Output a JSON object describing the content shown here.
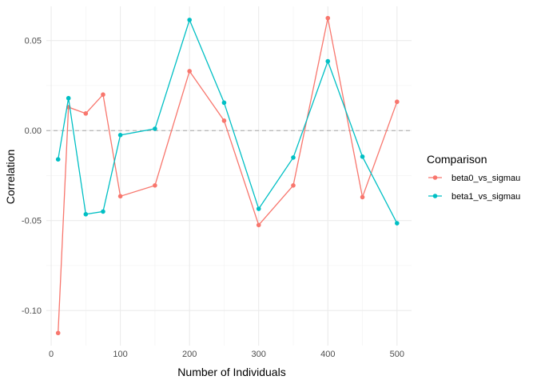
{
  "chart_data": {
    "type": "line",
    "title": "",
    "xlabel": "Number of Individuals",
    "ylabel": "Correlation",
    "xlim": [
      -7,
      521
    ],
    "ylim": [
      -0.1195,
      0.069
    ],
    "xticks": [
      0,
      100,
      200,
      300,
      400,
      500
    ],
    "xtick_labels": [
      "0",
      "100",
      "200",
      "300",
      "400",
      "500"
    ],
    "yticks": [
      -0.1,
      -0.05,
      0.0,
      0.05
    ],
    "ytick_labels": [
      "-0.10",
      "-0.05",
      "0.00",
      "0.05"
    ],
    "reference_line": {
      "y": 0,
      "style": "dashed",
      "color": "#a6a6a6"
    },
    "grid": true,
    "legend": {
      "title": "Comparison",
      "position": "right"
    },
    "x": [
      10,
      25,
      50,
      75,
      100,
      150,
      200,
      250,
      300,
      350,
      400,
      450,
      500
    ],
    "series": [
      {
        "name": "beta0_vs_sigmau",
        "color": "#F8766D",
        "values": [
          -0.1125,
          0.013,
          0.0095,
          0.02,
          -0.0365,
          -0.0305,
          0.033,
          0.0055,
          -0.0525,
          -0.0305,
          0.0625,
          -0.037,
          0.016
        ]
      },
      {
        "name": "beta1_vs_sigmau",
        "color": "#00BFC4",
        "values": [
          -0.016,
          0.018,
          -0.0465,
          -0.045,
          -0.0025,
          0.001,
          0.0615,
          0.0155,
          -0.0435,
          -0.015,
          0.0385,
          -0.0145,
          -0.0515
        ]
      }
    ]
  }
}
